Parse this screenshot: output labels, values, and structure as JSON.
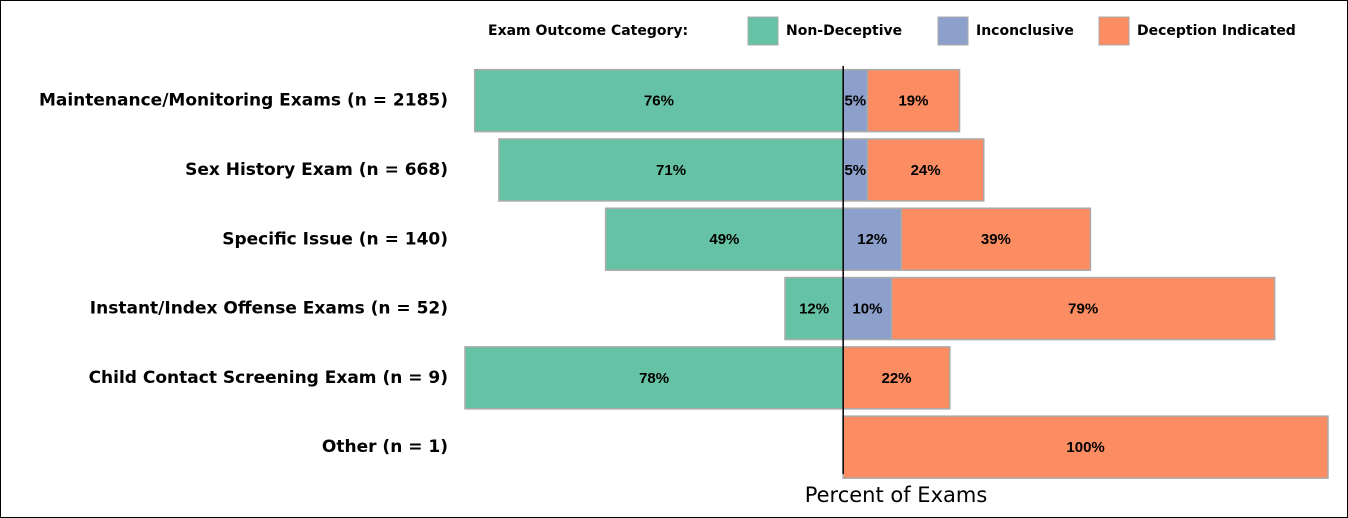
{
  "chart_data": {
    "type": "diverging-bar",
    "legend_title": "Exam Outcome Category:",
    "xlabel": "Percent of Exams",
    "categories": [
      "Maintenance/Monitoring Exams (n = 2185)",
      "Sex History Exam (n = 668)",
      "Specific Issue (n = 140)",
      "Instant/Index Offense Exams (n = 52)",
      "Child Contact Screening Exam (n = 9)",
      "Other (n = 1)"
    ],
    "xlim": [
      -78,
      100
    ],
    "legend": "top",
    "series": [
      {
        "name": "Non-Deceptive",
        "color": "#66c2a5",
        "side": "left",
        "values": [
          76,
          71,
          49,
          12,
          78,
          0
        ],
        "value_labels": [
          "76%",
          "71%",
          "49%",
          "12%",
          "78%",
          null
        ]
      },
      {
        "name": "Inconclusive",
        "color": "#8da0cb",
        "side": "right",
        "values": [
          5,
          5,
          12,
          10,
          0,
          0
        ],
        "value_labels": [
          "5%",
          "5%",
          "12%",
          "10%",
          null,
          null
        ]
      },
      {
        "name": "Deception Indicated",
        "color": "#fc8d62",
        "side": "right",
        "values": [
          19,
          24,
          39,
          79,
          22,
          100
        ],
        "value_labels": [
          "19%",
          "24%",
          "39%",
          "79%",
          "22%",
          "100%"
        ]
      }
    ]
  }
}
